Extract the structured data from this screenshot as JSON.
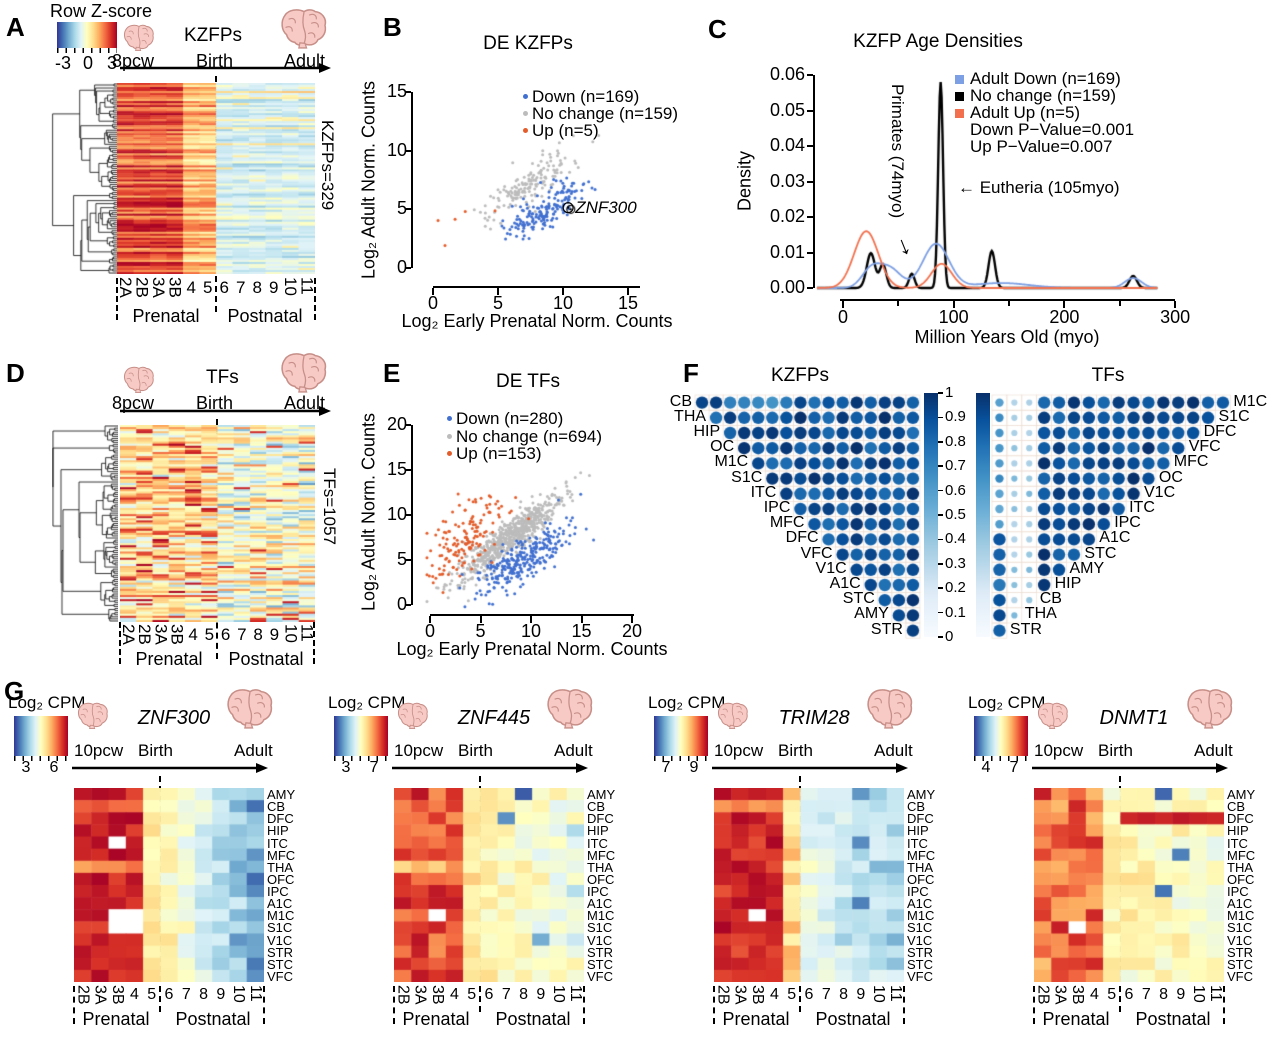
{
  "panels": {
    "A": {
      "label": "A",
      "title": "KZFPs",
      "colorbar": {
        "title": "Row Z-score",
        "ticks": [
          "-3",
          "0",
          "3"
        ]
      },
      "timeline": {
        "start": "8pcw",
        "mid": "Birth",
        "end": "Adult"
      },
      "stages": [
        "2A",
        "2B",
        "3A",
        "3B",
        "4",
        "5",
        "6",
        "7",
        "8",
        "9",
        "10",
        "11"
      ],
      "phases": [
        "Prenatal",
        "Postnatal"
      ],
      "side_label": "KZFPs=329"
    },
    "B": {
      "label": "B",
      "title": "DE KZFPs",
      "legend": [
        {
          "label": "Down (n=169)",
          "color": "#4170d0"
        },
        {
          "label": "No change (n=159)",
          "color": "#bcbcbc"
        },
        {
          "label": "Up (n=5)",
          "color": "#e35d2b"
        }
      ],
      "xlabel": "Log₂ Early Prenatal Norm. Counts",
      "ylabel": "Log₂ Adult Norm. Counts",
      "xticks": [
        "0",
        "5",
        "10",
        "15"
      ],
      "yticks": [
        "0",
        "5",
        "10",
        "15"
      ],
      "annotation": {
        "marker": "⊙",
        "text": "ZNF300"
      }
    },
    "C": {
      "label": "C",
      "title": "KZFP Age Densities",
      "xlabel": "Million Years Old (myo)",
      "ylabel": "Density",
      "xticks": [
        "0",
        "100",
        "200",
        "300"
      ],
      "yticks": [
        "0.00",
        "0.01",
        "0.02",
        "0.03",
        "0.04",
        "0.05",
        "0.06"
      ],
      "legend": [
        {
          "label": "Adult Down (n=169)",
          "color": "#7d9fe3"
        },
        {
          "label": "No change (n=159)",
          "color": "#000000"
        },
        {
          "label": "Adult Up (n=5)",
          "color": "#f2704d"
        }
      ],
      "stats": [
        "Down P−Value=0.001",
        "Up P−Value=0.007"
      ],
      "annotations": [
        {
          "text": "Primates (74myo)",
          "arrow": "↓"
        },
        {
          "text": "← Eutheria (105myo)"
        }
      ]
    },
    "D": {
      "label": "D",
      "title": "TFs",
      "timeline": {
        "start": "8pcw",
        "mid": "Birth",
        "end": "Adult"
      },
      "stages": [
        "2A",
        "2B",
        "3A",
        "3B",
        "4",
        "5",
        "6",
        "7",
        "8",
        "9",
        "10",
        "11"
      ],
      "phases": [
        "Prenatal",
        "Postnatal"
      ],
      "side_label": "TFs=1057"
    },
    "E": {
      "label": "E",
      "title": "DE TFs",
      "legend": [
        {
          "label": "Down (n=280)",
          "color": "#4170d0"
        },
        {
          "label": "No change (n=694)",
          "color": "#bcbcbc"
        },
        {
          "label": "Up (n=153)",
          "color": "#e35d2b"
        }
      ],
      "xlabel": "Log₂ Early Prenatal Norm. Counts",
      "ylabel": "Log₂ Adult Norm. Counts",
      "xticks": [
        "0",
        "5",
        "10",
        "15",
        "20"
      ],
      "yticks": [
        "0",
        "5",
        "10",
        "15",
        "20"
      ]
    },
    "F": {
      "label": "F",
      "left_title": "KZFPs",
      "right_title": "TFs",
      "left_labels": [
        "CB",
        "THA",
        "HIP",
        "OC",
        "M1C",
        "S1C",
        "ITC",
        "IPC",
        "MFC",
        "DFC",
        "VFC",
        "V1C",
        "A1C",
        "STC",
        "AMY",
        "STR"
      ],
      "right_labels": [
        "M1C",
        "S1C",
        "DFC",
        "VFC",
        "MFC",
        "OC",
        "V1C",
        "ITC",
        "IPC",
        "A1C",
        "STC",
        "AMY",
        "HIP",
        "CB",
        "THA",
        "STR"
      ],
      "colorbar_ticks": [
        "1",
        "0.9",
        "0.8",
        "0.7",
        "0.6",
        "0.5",
        "0.4",
        "0.3",
        "0.2",
        "0.1",
        "0"
      ]
    },
    "G": {
      "label": "G",
      "colorbar_title": "Log₂ CPM",
      "timeline": {
        "start": "10pcw",
        "mid": "Birth",
        "end": "Adult"
      },
      "stages": [
        "2B",
        "3A",
        "3B",
        "4",
        "5",
        "6",
        "7",
        "8",
        "9",
        "10",
        "11"
      ],
      "phases": [
        "Prenatal",
        "Postnatal"
      ],
      "row_labels": [
        "AMY",
        "CB",
        "DFC",
        "HIP",
        "ITC",
        "MFC",
        "THA",
        "OFC",
        "IPC",
        "A1C",
        "M1C",
        "S1C",
        "V1C",
        "STR",
        "STC",
        "VFC"
      ],
      "genes": [
        {
          "name": "ZNF300",
          "ticks": [
            "3",
            "6"
          ]
        },
        {
          "name": "ZNF445",
          "ticks": [
            "3",
            "7"
          ]
        },
        {
          "name": "TRIM28",
          "ticks": [
            "7",
            "9"
          ]
        },
        {
          "name": "DNMT1",
          "ticks": [
            "4",
            "7"
          ]
        }
      ]
    }
  },
  "chart_data": [
    {
      "id": "A",
      "type": "heatmap",
      "title": "KZFPs",
      "row_count": 329,
      "columns": [
        "2A",
        "2B",
        "3A",
        "3B",
        "4",
        "5",
        "6",
        "7",
        "8",
        "9",
        "10",
        "11"
      ],
      "phases": [
        "Prenatal",
        "Postnatal"
      ],
      "colorbar": {
        "title": "Row Z-score",
        "ticks": [
          -3,
          0,
          3
        ]
      },
      "pattern": {
        "display_rows": 95,
        "prenatal_t": [
          0.7,
          0.99
        ],
        "postnatal_t": [
          0.3,
          0.46
        ],
        "warm_postnatal_row_chance": 0.09,
        "seed": 11
      }
    },
    {
      "id": "B",
      "type": "scatter",
      "title": "DE KZFPs",
      "xlabel": "Log₂ Early Prenatal Norm. Counts",
      "ylabel": "Log₂ Adult Norm. Counts",
      "xlim": [
        0,
        16
      ],
      "ylim": [
        0,
        16
      ],
      "seed": 7,
      "series": [
        {
          "name": "No change (n=159)",
          "n": 159,
          "color": "#bcbcbc",
          "mx": 7.6,
          "sx": 1.7,
          "slope": 0.75,
          "intercept": 1.6,
          "sy": 0.85,
          "z": 0
        },
        {
          "name": "Down (n=169)",
          "n": 169,
          "color": "#4170d0",
          "mx": 8.6,
          "sx": 1.5,
          "slope": 0.62,
          "intercept": -0.4,
          "sy": 0.8,
          "z": 1
        },
        {
          "name": "Up (n=5)",
          "n": 5,
          "color": "#e35d2b",
          "mx": 1.9,
          "sx": 1.0,
          "slope": 0.7,
          "intercept": 2.6,
          "sy": 1.5,
          "z": 2
        }
      ],
      "annotation": {
        "text": "ZNF300",
        "x": 10.6,
        "y": 5.0
      }
    },
    {
      "id": "C",
      "type": "density",
      "title": "KZFP Age Densities",
      "xlabel": "Million Years Old (myo)",
      "ylabel": "Density",
      "xlim": [
        -30,
        340
      ],
      "ylim": [
        0,
        0.06
      ],
      "key_peaks": {
        "Primates": 74,
        "Eutheria": 105
      },
      "pvalues": {
        "down": 0.001,
        "up": 0.007
      },
      "curves": [
        {
          "name": "No change (n=159)",
          "color": "#000000",
          "width": 2.4,
          "peaks": [
            [
              30,
              4.5,
              0.0098
            ],
            [
              43,
              3.5,
              0.0066
            ],
            [
              74,
              3,
              0.004
            ],
            [
              105,
              2.6,
              0.058
            ],
            [
              160,
              3.5,
              0.0104
            ],
            [
              312,
              4,
              0.0034
            ]
          ]
        },
        {
          "name": "Adult Down (n=169)",
          "color": "#7d9fe3",
          "width": 1.8,
          "peaks": [
            [
              30,
              10,
              0.005
            ],
            [
              50,
              12,
              0.0055
            ],
            [
              100,
              14,
              0.0124
            ],
            [
              170,
              30,
              0.0014
            ],
            [
              312,
              9,
              0.0028
            ]
          ]
        },
        {
          "name": "Adult Up (n=5)",
          "color": "#f2704d",
          "width": 1.8,
          "peaks": [
            [
              25,
              13,
              0.016
            ],
            [
              106,
              11,
              0.0068
            ]
          ]
        }
      ]
    },
    {
      "id": "D",
      "type": "heatmap",
      "title": "TFs",
      "row_count": 1057,
      "columns": [
        "2A",
        "2B",
        "3A",
        "3B",
        "4",
        "5",
        "6",
        "7",
        "8",
        "9",
        "10",
        "11"
      ],
      "phases": [
        "Prenatal",
        "Postnatal"
      ],
      "pattern": {
        "display_rows": 95,
        "mixed": true,
        "seed": 21
      }
    },
    {
      "id": "E",
      "type": "scatter",
      "title": "DE TFs",
      "xlabel": "Log₂ Early Prenatal Norm. Counts",
      "ylabel": "Log₂ Adult Norm. Counts",
      "xlim": [
        0,
        21
      ],
      "ylim": [
        -1,
        21
      ],
      "seed": 9,
      "series": [
        {
          "name": "No change (n=694)",
          "n": 694,
          "color": "#bcbcbc",
          "mx": 8.0,
          "sx": 2.6,
          "slope": 0.82,
          "intercept": 1.0,
          "sy": 1.0,
          "z": 0
        },
        {
          "name": "Down (n=280)",
          "n": 280,
          "color": "#4170d0",
          "mx": 9.6,
          "sx": 2.4,
          "slope": 0.63,
          "intercept": -0.8,
          "sy": 1.3,
          "z": 1
        },
        {
          "name": "Up (n=153)",
          "n": 153,
          "color": "#e35d2b",
          "mx": 3.6,
          "sx": 2.1,
          "slope": 0.8,
          "intercept": 4.4,
          "sy": 1.9,
          "z": 2
        }
      ]
    },
    {
      "id": "F",
      "type": "correlogram",
      "titles": [
        "KZFPs",
        "TFs"
      ],
      "scale": [
        0,
        1
      ],
      "seed": 5,
      "left_labels": [
        "CB",
        "THA",
        "HIP",
        "OC",
        "M1C",
        "S1C",
        "ITC",
        "IPC",
        "MFC",
        "DFC",
        "VFC",
        "V1C",
        "A1C",
        "STC",
        "AMY",
        "STR"
      ],
      "right_labels": [
        "M1C",
        "S1C",
        "DFC",
        "VFC",
        "MFC",
        "OC",
        "V1C",
        "ITC",
        "IPC",
        "A1C",
        "STC",
        "AMY",
        "HIP",
        "CB",
        "THA",
        "STR"
      ]
    },
    {
      "id": "G",
      "type": "heatmap-grid",
      "colorbar_title": "Log₂ CPM",
      "rows": [
        "AMY",
        "CB",
        "DFC",
        "HIP",
        "ITC",
        "MFC",
        "THA",
        "OFC",
        "IPC",
        "A1C",
        "M1C",
        "S1C",
        "V1C",
        "STR",
        "STC",
        "VFC"
      ],
      "columns": [
        "2B",
        "3A",
        "3B",
        "4",
        "5",
        "6",
        "7",
        "8",
        "9",
        "10",
        "11"
      ],
      "genes": [
        {
          "name": "ZNF300",
          "cbar_ticks": [
            3,
            6
          ],
          "seed": 31,
          "prenatal": [
            0.86,
            1.0
          ],
          "stage5": [
            0.5,
            0.62
          ],
          "post_hi": [
            0.45,
            0.58
          ],
          "post_lo": [
            0.1,
            0.3
          ],
          "light_rows": [
            1,
            6
          ],
          "missing": [
            [
              4,
              2
            ],
            [
              10,
              2
            ],
            [
              10,
              3
            ],
            [
              11,
              2
            ],
            [
              11,
              3
            ]
          ],
          "specials": []
        },
        {
          "name": "ZNF445",
          "cbar_ticks": [
            3,
            7
          ],
          "seed": 37,
          "prenatal": [
            0.74,
            0.96
          ],
          "stage5": [
            0.52,
            0.66
          ],
          "post_hi": [
            0.48,
            0.6
          ],
          "post_lo": [
            0.34,
            0.52
          ],
          "light_rows": [
            6
          ],
          "missing": [
            [
              10,
              2
            ]
          ],
          "specials": [
            [
              0,
              7,
              0.06
            ],
            [
              2,
              6,
              0.15
            ],
            [
              12,
              8,
              0.2
            ]
          ]
        },
        {
          "name": "TRIM28",
          "cbar_ticks": [
            7,
            9
          ],
          "seed": 41,
          "prenatal": [
            0.84,
            1.0
          ],
          "stage5": [
            0.52,
            0.7
          ],
          "post_hi": [
            0.36,
            0.48
          ],
          "post_lo": [
            0.22,
            0.4
          ],
          "light_rows": [
            1
          ],
          "missing": [
            [
              10,
              2
            ]
          ],
          "specials": [
            [
              0,
              8,
              0.16
            ],
            [
              4,
              8,
              0.14
            ],
            [
              9,
              8,
              0.12
            ]
          ]
        },
        {
          "name": "DNMT1",
          "cbar_ticks": [
            4,
            7
          ],
          "seed": 43,
          "prenatal": [
            0.66,
            0.94
          ],
          "stage5": [
            0.44,
            0.6
          ],
          "post_hi": [
            0.46,
            0.6
          ],
          "post_lo": [
            0.4,
            0.55
          ],
          "light_rows": [],
          "missing": [
            [
              11,
              2
            ]
          ],
          "specials": [
            [
              0,
              7,
              0.08
            ],
            [
              5,
              8,
              0.12
            ],
            [
              8,
              7,
              0.1
            ],
            [
              2,
              5,
              0.92
            ],
            [
              2,
              6,
              0.94
            ],
            [
              2,
              7,
              0.92
            ],
            [
              2,
              8,
              0.95
            ],
            [
              2,
              9,
              0.93
            ],
            [
              2,
              10,
              0.92
            ]
          ]
        }
      ]
    }
  ]
}
